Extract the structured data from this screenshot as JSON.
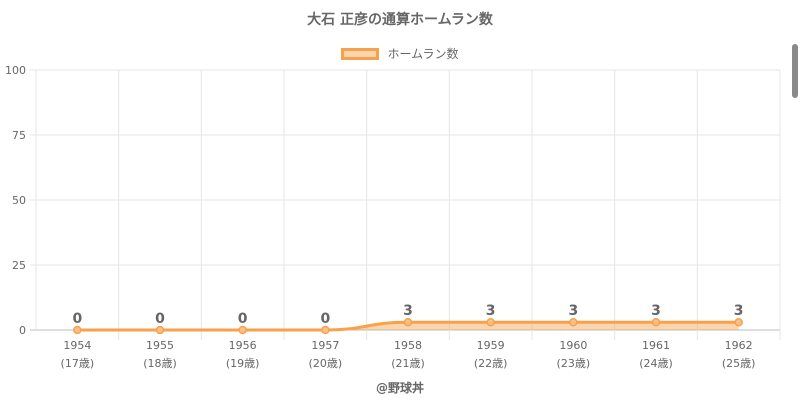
{
  "chart_data": {
    "type": "area",
    "title": "大石 正彦の通算ホームラン数",
    "categories": [
      "1954",
      "1955",
      "1956",
      "1957",
      "1958",
      "1959",
      "1960",
      "1961",
      "1962"
    ],
    "category_sublabels": [
      "(17歳)",
      "(18歳)",
      "(19歳)",
      "(20歳)",
      "(21歳)",
      "(22歳)",
      "(23歳)",
      "(24歳)",
      "(25歳)"
    ],
    "series": [
      {
        "name": "ホームラン数",
        "values": [
          0,
          0,
          0,
          0,
          3,
          3,
          3,
          3,
          3
        ]
      }
    ],
    "ylim": [
      0,
      100
    ],
    "yticks": [
      0,
      25,
      50,
      75,
      100
    ],
    "grid": true,
    "legend_position": "top",
    "colors": {
      "line": "#f7a24b",
      "fill": "rgba(247,162,75,0.45)"
    }
  },
  "credit": "@野球丼"
}
